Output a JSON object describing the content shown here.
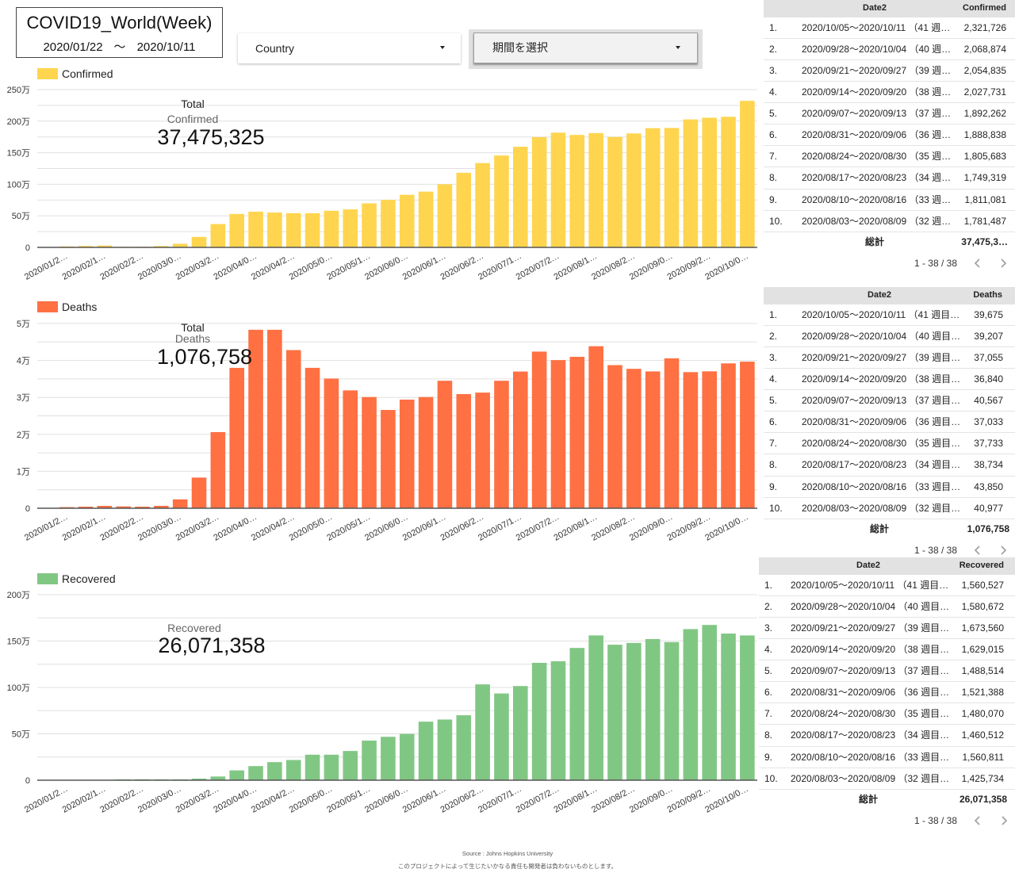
{
  "header": {
    "title": "COVID19_World(Week)",
    "date_from": "2020/01/22",
    "date_sep": "〜",
    "date_to": "2020/10/11"
  },
  "filters": {
    "country": {
      "label": "Country"
    },
    "period": {
      "label": "期間を選択"
    }
  },
  "scorecards": {
    "confirmed": {
      "title": "Total",
      "metric": "Confirmed",
      "value": "37,475,325"
    },
    "deaths": {
      "title": "Total",
      "metric": "Deaths",
      "value": "1,076,758"
    },
    "recovered": {
      "metric": "Recovered",
      "value": "26,071,358"
    }
  },
  "tables": [
    {
      "date_header": "Date2",
      "metric_header": "Confirmed",
      "rows": [
        {
          "rank": "1.",
          "date": "2020/10/05〜2020/10/11 （41 週…",
          "value": "2,321,726"
        },
        {
          "rank": "2.",
          "date": "2020/09/28〜2020/10/04 （40 週…",
          "value": "2,068,874"
        },
        {
          "rank": "3.",
          "date": "2020/09/21〜2020/09/27 （39 週…",
          "value": "2,054,835"
        },
        {
          "rank": "4.",
          "date": "2020/09/14〜2020/09/20 （38 週…",
          "value": "2,027,731"
        },
        {
          "rank": "5.",
          "date": "2020/09/07〜2020/09/13 （37 週…",
          "value": "1,892,262"
        },
        {
          "rank": "6.",
          "date": "2020/08/31〜2020/09/06 （36 週…",
          "value": "1,888,838"
        },
        {
          "rank": "7.",
          "date": "2020/08/24〜2020/08/30 （35 週…",
          "value": "1,805,683"
        },
        {
          "rank": "8.",
          "date": "2020/08/17〜2020/08/23 （34 週…",
          "value": "1,749,319"
        },
        {
          "rank": "9.",
          "date": "2020/08/10〜2020/08/16 （33 週…",
          "value": "1,811,081"
        },
        {
          "rank": "10.",
          "date": "2020/08/03〜2020/08/09 （32 週…",
          "value": "1,781,487"
        }
      ],
      "total_label": "総計",
      "total_value": "37,475,3…",
      "pagination": "1 - 38 / 38"
    },
    {
      "date_header": "Date2",
      "metric_header": "Deaths",
      "rows": [
        {
          "rank": "1.",
          "date": "2020/10/05〜2020/10/11 （41 週目…",
          "value": "39,675"
        },
        {
          "rank": "2.",
          "date": "2020/09/28〜2020/10/04 （40 週目…",
          "value": "39,207"
        },
        {
          "rank": "3.",
          "date": "2020/09/21〜2020/09/27 （39 週目…",
          "value": "37,055"
        },
        {
          "rank": "4.",
          "date": "2020/09/14〜2020/09/20 （38 週目…",
          "value": "36,840"
        },
        {
          "rank": "5.",
          "date": "2020/09/07〜2020/09/13 （37 週目…",
          "value": "40,567"
        },
        {
          "rank": "6.",
          "date": "2020/08/31〜2020/09/06 （36 週目…",
          "value": "37,033"
        },
        {
          "rank": "7.",
          "date": "2020/08/24〜2020/08/30 （35 週目…",
          "value": "37,733"
        },
        {
          "rank": "8.",
          "date": "2020/08/17〜2020/08/23 （34 週目…",
          "value": "38,734"
        },
        {
          "rank": "9.",
          "date": "2020/08/10〜2020/08/16 （33 週目…",
          "value": "43,850"
        },
        {
          "rank": "10.",
          "date": "2020/08/03〜2020/08/09 （32 週目…",
          "value": "40,977"
        }
      ],
      "total_label": "総計",
      "total_value": "1,076,758",
      "pagination": "1 - 38 / 38"
    },
    {
      "date_header": "Date2",
      "metric_header": "Recovered",
      "rows": [
        {
          "rank": "1.",
          "date": "2020/10/05〜2020/10/11 （41 週目…",
          "value": "1,560,527"
        },
        {
          "rank": "2.",
          "date": "2020/09/28〜2020/10/04 （40 週目…",
          "value": "1,580,672"
        },
        {
          "rank": "3.",
          "date": "2020/09/21〜2020/09/27 （39 週目…",
          "value": "1,673,560"
        },
        {
          "rank": "4.",
          "date": "2020/09/14〜2020/09/20 （38 週目…",
          "value": "1,629,015"
        },
        {
          "rank": "5.",
          "date": "2020/09/07〜2020/09/13 （37 週目…",
          "value": "1,488,514"
        },
        {
          "rank": "6.",
          "date": "2020/08/31〜2020/09/06 （36 週目…",
          "value": "1,521,388"
        },
        {
          "rank": "7.",
          "date": "2020/08/24〜2020/08/30 （35 週目…",
          "value": "1,480,070"
        },
        {
          "rank": "8.",
          "date": "2020/08/17〜2020/08/23 （34 週目…",
          "value": "1,460,512"
        },
        {
          "rank": "9.",
          "date": "2020/08/10〜2020/08/16 （33 週目…",
          "value": "1,560,811"
        },
        {
          "rank": "10.",
          "date": "2020/08/03〜2020/08/09 （32 週目…",
          "value": "1,425,734"
        }
      ],
      "total_label": "総計",
      "total_value": "26,071,358",
      "pagination": "1 - 38 / 38"
    }
  ],
  "footer": {
    "source": "Source : Johns Hopkins University",
    "disclaimer": "このプロジェクトによって生じたいかなる責任も開発者は負わないものとします。"
  },
  "chart_data": [
    {
      "type": "bar",
      "title": "",
      "series_name": "Confirmed",
      "color": "#FFD54F",
      "xlabel": "",
      "ylabel": "",
      "ylim": [
        0,
        2500000
      ],
      "grid": true,
      "grid_step": 250000,
      "legend": "top-left",
      "yticks": [
        {
          "value": 0,
          "label": "0"
        },
        {
          "value": 500000,
          "label": "50万"
        },
        {
          "value": 1000000,
          "label": "100万"
        },
        {
          "value": 1500000,
          "label": "150万"
        },
        {
          "value": 2000000,
          "label": "200万"
        },
        {
          "value": 2500000,
          "label": "250万"
        }
      ],
      "categories": [
        "2020/01/20",
        "2020/01/27",
        "2020/02/03",
        "2020/02/10",
        "2020/02/17",
        "2020/02/24",
        "2020/03/02",
        "2020/03/09",
        "2020/03/16",
        "2020/03/23",
        "2020/03/30",
        "2020/04/06",
        "2020/04/13",
        "2020/04/20",
        "2020/04/27",
        "2020/05/04",
        "2020/05/11",
        "2020/05/18",
        "2020/05/25",
        "2020/06/01",
        "2020/06/08",
        "2020/06/15",
        "2020/06/22",
        "2020/06/29",
        "2020/07/06",
        "2020/07/13",
        "2020/07/20",
        "2020/07/27",
        "2020/08/03",
        "2020/08/10",
        "2020/08/17",
        "2020/08/24",
        "2020/08/31",
        "2020/09/07",
        "2020/09/14",
        "2020/09/21",
        "2020/09/28",
        "2020/10/05"
      ],
      "x_tick_labels": [
        "",
        "2020/01/2…",
        "",
        "2020/02/1…",
        "",
        "2020/02/2…",
        "",
        "2020/03/0…",
        "",
        "2020/03/2…",
        "",
        "2020/04/0…",
        "",
        "2020/04/2…",
        "",
        "2020/05/0…",
        "",
        "2020/05/1…",
        "",
        "2020/06/0…",
        "",
        "2020/06/1…",
        "",
        "2020/06/2…",
        "",
        "2020/07/1…",
        "",
        "2020/07/2…",
        "",
        "2020/08/1…",
        "",
        "2020/08/2…",
        "",
        "2020/09/0…",
        "",
        "2020/09/2…",
        "",
        "2020/10/0…"
      ],
      "values": [
        2100,
        15300,
        22800,
        28900,
        9600,
        9800,
        21500,
        57600,
        166000,
        370000,
        530000,
        566000,
        552000,
        542000,
        542000,
        580000,
        602000,
        698000,
        753000,
        833000,
        884000,
        1000000,
        1182000,
        1336000,
        1456000,
        1594000,
        1747000,
        1818000,
        1781487,
        1811081,
        1749319,
        1805683,
        1888838,
        1892262,
        2027731,
        2054835,
        2068874,
        2321726
      ]
    },
    {
      "type": "bar",
      "title": "",
      "series_name": "Deaths",
      "color": "#FF7043",
      "xlabel": "",
      "ylabel": "",
      "ylim": [
        0,
        50000
      ],
      "grid": true,
      "grid_step": 5000,
      "legend": "top-left",
      "yticks": [
        {
          "value": 0,
          "label": "0"
        },
        {
          "value": 10000,
          "label": "1万"
        },
        {
          "value": 20000,
          "label": "2万"
        },
        {
          "value": 30000,
          "label": "3万"
        },
        {
          "value": 40000,
          "label": "4万"
        },
        {
          "value": 50000,
          "label": "5万"
        }
      ],
      "categories": [
        "2020/01/20",
        "2020/01/27",
        "2020/02/03",
        "2020/02/10",
        "2020/02/17",
        "2020/02/24",
        "2020/03/02",
        "2020/03/09",
        "2020/03/16",
        "2020/03/23",
        "2020/03/30",
        "2020/04/06",
        "2020/04/13",
        "2020/04/20",
        "2020/04/27",
        "2020/05/04",
        "2020/05/11",
        "2020/05/18",
        "2020/05/25",
        "2020/06/01",
        "2020/06/08",
        "2020/06/15",
        "2020/06/22",
        "2020/06/29",
        "2020/07/06",
        "2020/07/13",
        "2020/07/20",
        "2020/07/27",
        "2020/08/03",
        "2020/08/10",
        "2020/08/17",
        "2020/08/24",
        "2020/08/31",
        "2020/09/07",
        "2020/09/14",
        "2020/09/21",
        "2020/09/28",
        "2020/10/05"
      ],
      "x_tick_labels": [
        "",
        "2020/01/2…",
        "",
        "2020/02/1…",
        "",
        "2020/02/2…",
        "",
        "2020/03/0…",
        "",
        "2020/03/2…",
        "",
        "2020/04/0…",
        "",
        "2020/04/2…",
        "",
        "2020/05/0…",
        "",
        "2020/05/1…",
        "",
        "2020/06/0…",
        "",
        "2020/06/1…",
        "",
        "2020/06/2…",
        "",
        "2020/07/1…",
        "",
        "2020/07/2…",
        "",
        "2020/08/1…",
        "",
        "2020/08/2…",
        "",
        "2020/09/0…",
        "",
        "2020/09/2…",
        "",
        "2020/10/0…"
      ],
      "values": [
        56,
        300,
        430,
        640,
        500,
        430,
        650,
        2400,
        8300,
        20600,
        38000,
        48300,
        48300,
        42800,
        38000,
        35100,
        31900,
        30100,
        26600,
        29400,
        30100,
        34500,
        30900,
        31300,
        34500,
        37000,
        42400,
        40100,
        40977,
        43850,
        38734,
        37733,
        37033,
        40567,
        36840,
        37055,
        39207,
        39675
      ]
    },
    {
      "type": "bar",
      "title": "",
      "series_name": "Recovered",
      "color": "#81C784",
      "xlabel": "",
      "ylabel": "",
      "ylim": [
        0,
        2000000
      ],
      "grid": true,
      "grid_step": 250000,
      "legend": "top-left",
      "yticks": [
        {
          "value": 0,
          "label": "0"
        },
        {
          "value": 500000,
          "label": "50万"
        },
        {
          "value": 1000000,
          "label": "100万"
        },
        {
          "value": 1500000,
          "label": "150万"
        },
        {
          "value": 2000000,
          "label": "200万"
        }
      ],
      "categories": [
        "2020/01/20",
        "2020/01/27",
        "2020/02/03",
        "2020/02/10",
        "2020/02/17",
        "2020/02/24",
        "2020/03/02",
        "2020/03/09",
        "2020/03/16",
        "2020/03/23",
        "2020/03/30",
        "2020/04/06",
        "2020/04/13",
        "2020/04/20",
        "2020/04/27",
        "2020/05/04",
        "2020/05/11",
        "2020/05/18",
        "2020/05/25",
        "2020/06/01",
        "2020/06/08",
        "2020/06/15",
        "2020/06/22",
        "2020/06/29",
        "2020/07/06",
        "2020/07/13",
        "2020/07/20",
        "2020/07/27",
        "2020/08/03",
        "2020/08/10",
        "2020/08/17",
        "2020/08/24",
        "2020/08/31",
        "2020/09/07",
        "2020/09/14",
        "2020/09/21",
        "2020/09/28",
        "2020/10/05"
      ],
      "x_tick_labels": [
        "",
        "2020/01/2…",
        "",
        "2020/02/1…",
        "",
        "2020/02/2…",
        "",
        "2020/03/0…",
        "",
        "2020/03/2…",
        "",
        "2020/04/0…",
        "",
        "2020/04/2…",
        "",
        "2020/05/0…",
        "",
        "2020/05/1…",
        "",
        "2020/06/0…",
        "",
        "2020/06/1…",
        "",
        "2020/06/2…",
        "",
        "2020/07/1…",
        "",
        "2020/07/2…",
        "",
        "2020/08/1…",
        "",
        "2020/08/2…",
        "",
        "2020/09/0…",
        "",
        "2020/09/2…",
        "",
        "2020/10/0…"
      ],
      "values": [
        50,
        500,
        2500,
        3000,
        9000,
        10000,
        9000,
        9000,
        17000,
        40000,
        106000,
        152000,
        195000,
        218000,
        275000,
        275000,
        315000,
        427000,
        468000,
        499000,
        631000,
        654000,
        700000,
        1033000,
        935000,
        1015000,
        1265000,
        1282000,
        1425734,
        1560811,
        1460512,
        1480070,
        1521388,
        1488514,
        1629015,
        1673560,
        1580672,
        1560527
      ]
    }
  ]
}
